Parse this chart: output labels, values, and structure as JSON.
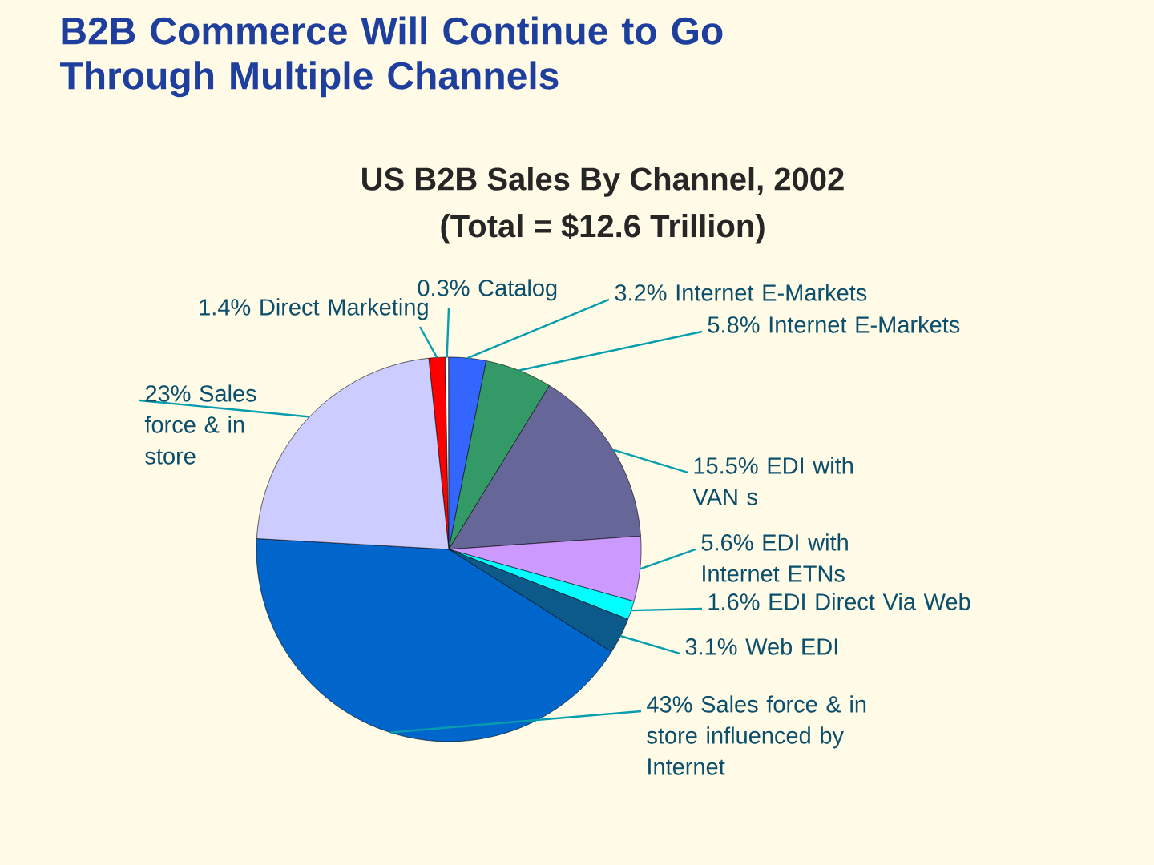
{
  "chart_data": {
    "type": "pie",
    "title": "US B2B Sales By Channel, 2002",
    "subtitle": "(Total = $12.6 Trillion)",
    "annotations": [
      "B2B Commerce Will Continue to Go Through Multiple Channels"
    ],
    "categories": [
      "Direct Marketing",
      "Catalog",
      "Internet E-Markets",
      "Internet E-Markets",
      "EDI with VAN s",
      "EDI with Internet ETNs",
      "EDI Direct Via Web",
      "Web EDI",
      "Sales force & in store influenced by Internet",
      "Sales force & in store"
    ],
    "values": [
      1.4,
      0.3,
      3.2,
      5.8,
      15.5,
      5.6,
      1.6,
      3.1,
      43,
      23
    ],
    "value_labels": [
      "1.4%",
      "0.3%",
      "3.2%",
      "5.8%",
      "15.5%",
      "5.6%",
      "1.6%",
      "3.1%",
      "43%",
      "23%"
    ],
    "colors": [
      "#ff0000",
      "#ffffff",
      "#3366ff",
      "#339966",
      "#666699",
      "#cc99ff",
      "#00ffff",
      "#0b5a8a",
      "#0066cc",
      "#ccccff"
    ]
  }
}
